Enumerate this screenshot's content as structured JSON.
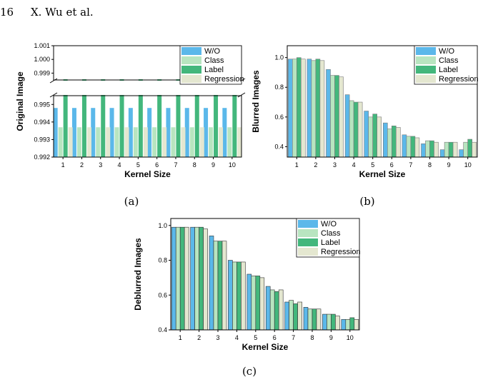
{
  "header": {
    "page_number": "16",
    "authors": "X. Wu et al."
  },
  "colors": {
    "wo": "#5bb8ea",
    "class": "#b8e5c0",
    "label": "#43b77c",
    "regression": "#e4e7d0"
  },
  "chart_data": [
    {
      "id": "a",
      "type": "bar",
      "caption": "(a)",
      "xlabel": "Kernel Size",
      "ylabel": "Original Image",
      "categories": [
        "1",
        "2",
        "3",
        "4",
        "5",
        "6",
        "7",
        "8",
        "9",
        "10"
      ],
      "y_axis_break": {
        "lower": [
          0.992,
          0.9955
        ],
        "upper": [
          0.9985,
          1.001
        ]
      },
      "yticks_lower": [
        "0.992",
        "0.993",
        "0.994",
        "0.995"
      ],
      "yticks_upper": [
        "0.999",
        "1.000",
        "1.001"
      ],
      "legend_position": "top-right",
      "series": [
        {
          "name": "W/O",
          "values": [
            0.9948,
            0.9948,
            0.9948,
            0.9948,
            0.9948,
            0.9948,
            0.9948,
            0.9948,
            0.9948,
            0.9948
          ]
        },
        {
          "name": "Class",
          "values": [
            0.9937,
            0.9937,
            0.9937,
            0.9937,
            0.9937,
            0.9937,
            0.9937,
            0.9937,
            0.9937,
            0.9937
          ]
        },
        {
          "name": "Label",
          "values": [
            0.99855,
            0.99855,
            0.99855,
            0.99855,
            0.99855,
            0.99855,
            0.99855,
            0.99855,
            0.99855,
            0.99855
          ]
        },
        {
          "name": "Regression",
          "values": [
            0.9937,
            0.9937,
            0.9937,
            0.9937,
            0.9937,
            0.9937,
            0.9937,
            0.9937,
            0.9937,
            0.9937
          ]
        }
      ]
    },
    {
      "id": "b",
      "type": "bar",
      "caption": "(b)",
      "xlabel": "Kernel Size",
      "ylabel": "Blurred Images",
      "categories": [
        "1",
        "2",
        "3",
        "4",
        "5",
        "6",
        "7",
        "8",
        "9",
        "10"
      ],
      "ylim": [
        0.33,
        1.08
      ],
      "yticks": [
        "0.4",
        "0.6",
        "0.8",
        "1.0"
      ],
      "legend_position": "top-right",
      "series": [
        {
          "name": "W/O",
          "values": [
            0.99,
            0.99,
            0.92,
            0.75,
            0.64,
            0.56,
            0.48,
            0.42,
            0.38,
            0.38
          ]
        },
        {
          "name": "Class",
          "values": [
            0.99,
            0.98,
            0.88,
            0.71,
            0.6,
            0.52,
            0.47,
            0.44,
            0.43,
            0.43
          ]
        },
        {
          "name": "Label",
          "values": [
            1.0,
            0.99,
            0.88,
            0.7,
            0.62,
            0.54,
            0.47,
            0.44,
            0.43,
            0.45
          ]
        },
        {
          "name": "Regression",
          "values": [
            0.99,
            0.98,
            0.87,
            0.7,
            0.6,
            0.53,
            0.46,
            0.43,
            0.43,
            0.43
          ]
        }
      ]
    },
    {
      "id": "c",
      "type": "bar",
      "caption": "(c)",
      "xlabel": "Kernel Size",
      "ylabel": "Deblurred Images",
      "categories": [
        "1",
        "2",
        "3",
        "4",
        "5",
        "6",
        "7",
        "8",
        "9",
        "10"
      ],
      "ylim": [
        0.4,
        1.04
      ],
      "yticks": [
        "0.4",
        "0.6",
        "0.8",
        "1.0"
      ],
      "legend_position": "top-right",
      "series": [
        {
          "name": "W/O",
          "values": [
            0.99,
            0.99,
            0.94,
            0.8,
            0.72,
            0.65,
            0.56,
            0.53,
            0.49,
            0.46
          ]
        },
        {
          "name": "Class",
          "values": [
            0.99,
            0.99,
            0.91,
            0.79,
            0.71,
            0.63,
            0.57,
            0.52,
            0.49,
            0.46
          ]
        },
        {
          "name": "Label",
          "values": [
            0.99,
            0.99,
            0.91,
            0.79,
            0.71,
            0.62,
            0.55,
            0.52,
            0.49,
            0.47
          ]
        },
        {
          "name": "Regression",
          "values": [
            0.99,
            0.98,
            0.91,
            0.79,
            0.7,
            0.63,
            0.56,
            0.52,
            0.48,
            0.46
          ]
        }
      ]
    }
  ]
}
